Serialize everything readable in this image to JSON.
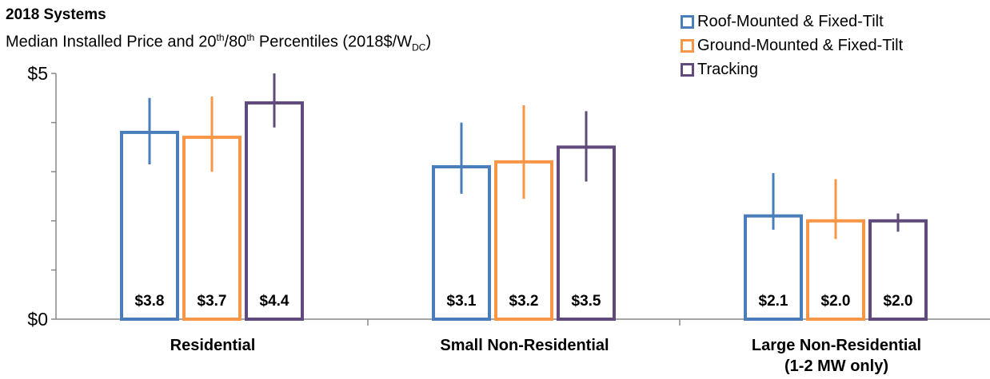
{
  "chart_data": {
    "type": "bar",
    "title": "2018 Systems",
    "subtitle": {
      "pre": "Median Installed  Price and 20",
      "sup1": "th",
      "mid": "/80",
      "sup2": "th",
      "post": " Percentiles (2018$/W",
      "sub": "DC",
      "end": ")"
    },
    "categories": [
      "Residential",
      "Small Non-Residential",
      "Large Non-Residential"
    ],
    "category_sublabels": [
      "",
      "",
      "(1-2 MW only)"
    ],
    "ylim": [
      0,
      5
    ],
    "ytick_labels": [
      "$0",
      "$5"
    ],
    "legend_position": "top-right",
    "series": [
      {
        "name": "Roof-Mounted & Fixed-Tilt",
        "color": "#4A7EBB",
        "values": [
          3.8,
          3.1,
          2.1
        ],
        "labels": [
          "$3.8",
          "$3.1",
          "$2.1"
        ],
        "p20": [
          3.15,
          2.55,
          1.82
        ],
        "p80": [
          4.5,
          4.0,
          2.97
        ]
      },
      {
        "name": "Ground-Mounted & Fixed-Tilt",
        "color": "#F79646",
        "values": [
          3.7,
          3.2,
          2.0
        ],
        "labels": [
          "$3.7",
          "$3.2",
          "$2.0"
        ],
        "p20": [
          3.0,
          2.45,
          1.63
        ],
        "p80": [
          4.53,
          4.35,
          2.85
        ]
      },
      {
        "name": "Tracking",
        "color": "#604A7B",
        "values": [
          4.4,
          3.5,
          2.0
        ],
        "labels": [
          "$4.4",
          "$3.5",
          "$2.0"
        ],
        "p20": [
          3.9,
          2.8,
          1.78
        ],
        "p80": [
          5.0,
          4.23,
          2.15
        ]
      }
    ]
  }
}
